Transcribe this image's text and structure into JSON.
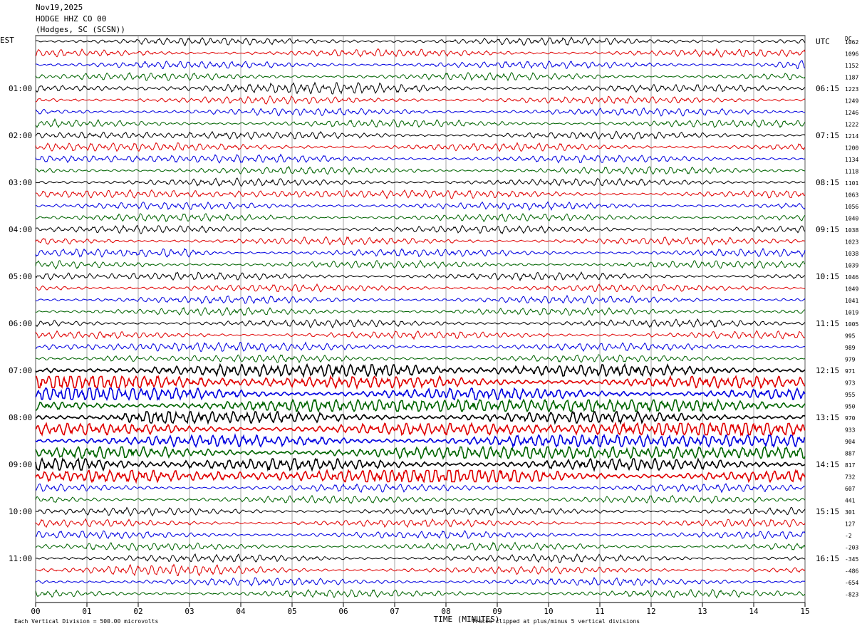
{
  "header": {
    "date": "Nov19,2025",
    "station": "HODGE HHZ CO 00",
    "location": "(Hodges, SC (SCSN))"
  },
  "chart_data": {
    "type": "line",
    "title": "Nov19,2025 HODGE HHZ CO 00 (Hodges, SC (SCSN))",
    "left_timezone": "EST",
    "right_timezone": "UTC",
    "right_values_label": "DC",
    "xlabel": "TIME (MINUTES)",
    "xlim": [
      0,
      15
    ],
    "x_ticks": [
      "00",
      "01",
      "02",
      "03",
      "04",
      "05",
      "06",
      "07",
      "08",
      "09",
      "10",
      "11",
      "12",
      "13",
      "14",
      "15"
    ],
    "left_hour_labels": [
      {
        "row": 4,
        "label": "01:00"
      },
      {
        "row": 8,
        "label": "02:00"
      },
      {
        "row": 12,
        "label": "03:00"
      },
      {
        "row": 16,
        "label": "04:00"
      },
      {
        "row": 20,
        "label": "05:00"
      },
      {
        "row": 24,
        "label": "06:00"
      },
      {
        "row": 28,
        "label": "07:00"
      },
      {
        "row": 32,
        "label": "08:00"
      },
      {
        "row": 36,
        "label": "09:00"
      },
      {
        "row": 40,
        "label": "10:00"
      },
      {
        "row": 44,
        "label": "11:00"
      }
    ],
    "right_hour_labels": [
      {
        "row": 0,
        "label": "UTC"
      },
      {
        "row": 4,
        "label": "06:15"
      },
      {
        "row": 8,
        "label": "07:15"
      },
      {
        "row": 12,
        "label": "08:15"
      },
      {
        "row": 16,
        "label": "09:15"
      },
      {
        "row": 20,
        "label": "10:15"
      },
      {
        "row": 24,
        "label": "11:15"
      },
      {
        "row": 28,
        "label": "12:15"
      },
      {
        "row": 32,
        "label": "13:15"
      },
      {
        "row": 36,
        "label": "14:15"
      },
      {
        "row": 40,
        "label": "15:15"
      },
      {
        "row": 44,
        "label": "16:15"
      }
    ],
    "trace_colors": [
      "#000000",
      "#e00000",
      "#0000e0",
      "#006400"
    ],
    "trace_dc_offsets": [
      "1062",
      "1096",
      "1152",
      "1187",
      "1223",
      "1249",
      "1246",
      "1222",
      "1214",
      "1200",
      "1134",
      "1118",
      "1101",
      "1063",
      "1056",
      "1040",
      "1038",
      "1023",
      "1038",
      "1039",
      "1046",
      "1049",
      "1041",
      "1019",
      "1005",
      "995",
      "989",
      "979",
      "971",
      "973",
      "955",
      "950",
      "970",
      "933",
      "904",
      "887",
      "817",
      "732",
      "607",
      "441",
      "301",
      "127",
      "-2",
      "-203",
      "-345",
      "-486",
      "-654",
      "-823"
    ],
    "active_traces": [
      28,
      29,
      30,
      31,
      32,
      33,
      34,
      35,
      36,
      37
    ],
    "grid": true,
    "footer_left": "Each Vertical Division =  500.00 microvolts",
    "footer_right": "Traces clipped at plus/minus 5 vertical divisions"
  }
}
